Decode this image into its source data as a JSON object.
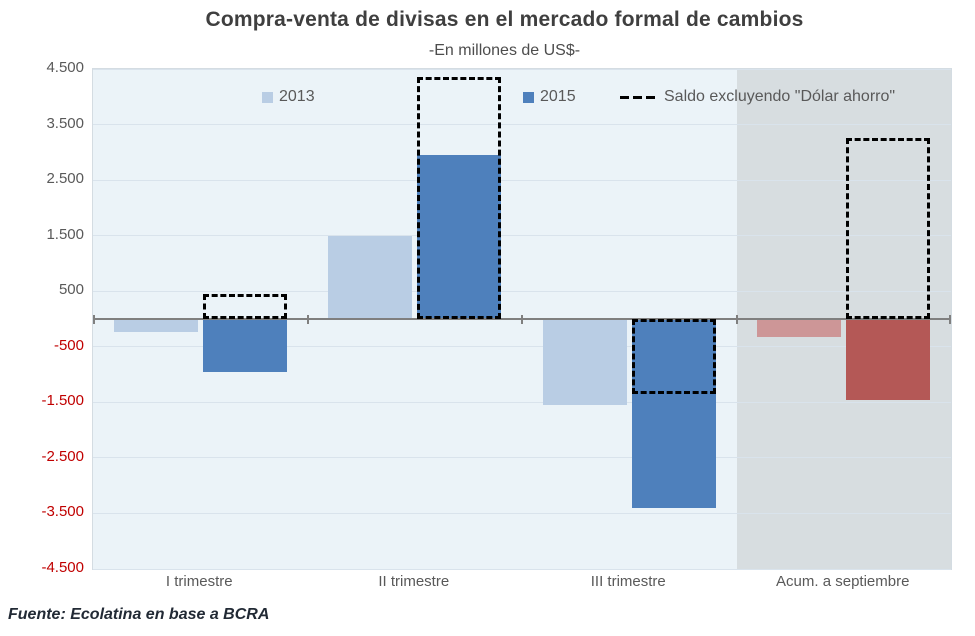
{
  "header": {
    "title": "Compra-venta de divisas en el mercado formal de cambios",
    "subtitle": "-En millones de US$-"
  },
  "footer": {
    "source": "Fuente: Ecolatina en base a BCRA"
  },
  "colors": {
    "series_2013_blue": "#b9cde4",
    "series_2013_highlight_pink": "#cd9697",
    "series_2015_blue": "#4e80bc",
    "series_2015_highlight_red": "#b45856",
    "saldo_outline": "#000000",
    "plot_background": "#ebf3f8",
    "highlight_band": "#d7dde0",
    "gridline": "#d9e3ec",
    "zero_axis": "#7f7f7f",
    "ylabel_positive": "#595959",
    "ylabel_negative": "#c00000"
  },
  "chart_data": {
    "type": "bar",
    "title": "Compra-venta de divisas en el mercado formal de cambios",
    "subtitle": "-En millones de US$-",
    "categories": [
      "I trimestre",
      "II trimestre",
      "III trimestre",
      "Acum. a septiembre"
    ],
    "series": [
      {
        "name": "2013",
        "values": [
          -230,
          1500,
          -1550,
          -330
        ],
        "bar_colors": [
          "#b9cde4",
          "#b9cde4",
          "#b9cde4",
          "#cd9697"
        ],
        "legend_swatch_color": "#b9cde4"
      },
      {
        "name": "2015",
        "values": [
          -950,
          2950,
          -3400,
          -1450
        ],
        "bar_colors": [
          "#4e80bc",
          "#4e80bc",
          "#4e80bc",
          "#b45856"
        ],
        "legend_swatch_color": "#4e80bc"
      },
      {
        "name": "Saldo excluyendo \"Dólar ahorro\"",
        "style": "dashed-outline-box",
        "values": [
          450,
          4350,
          -1350,
          3250
        ]
      }
    ],
    "ylim": [
      -4500,
      4500
    ],
    "yticks": {
      "values": [
        4500,
        3500,
        2500,
        1500,
        500,
        -500,
        -1500,
        -2500,
        -3500,
        -4500
      ],
      "labels": [
        "4.500",
        "3.500",
        "2.500",
        "1.500",
        "500",
        "-500",
        "-1.500",
        "-2.500",
        "-3.500",
        "-4.500"
      ]
    },
    "highlight_band_category": "Acum. a septiembre",
    "legend_position": "top-inside",
    "grid": true,
    "xlabel": "",
    "ylabel": ""
  }
}
